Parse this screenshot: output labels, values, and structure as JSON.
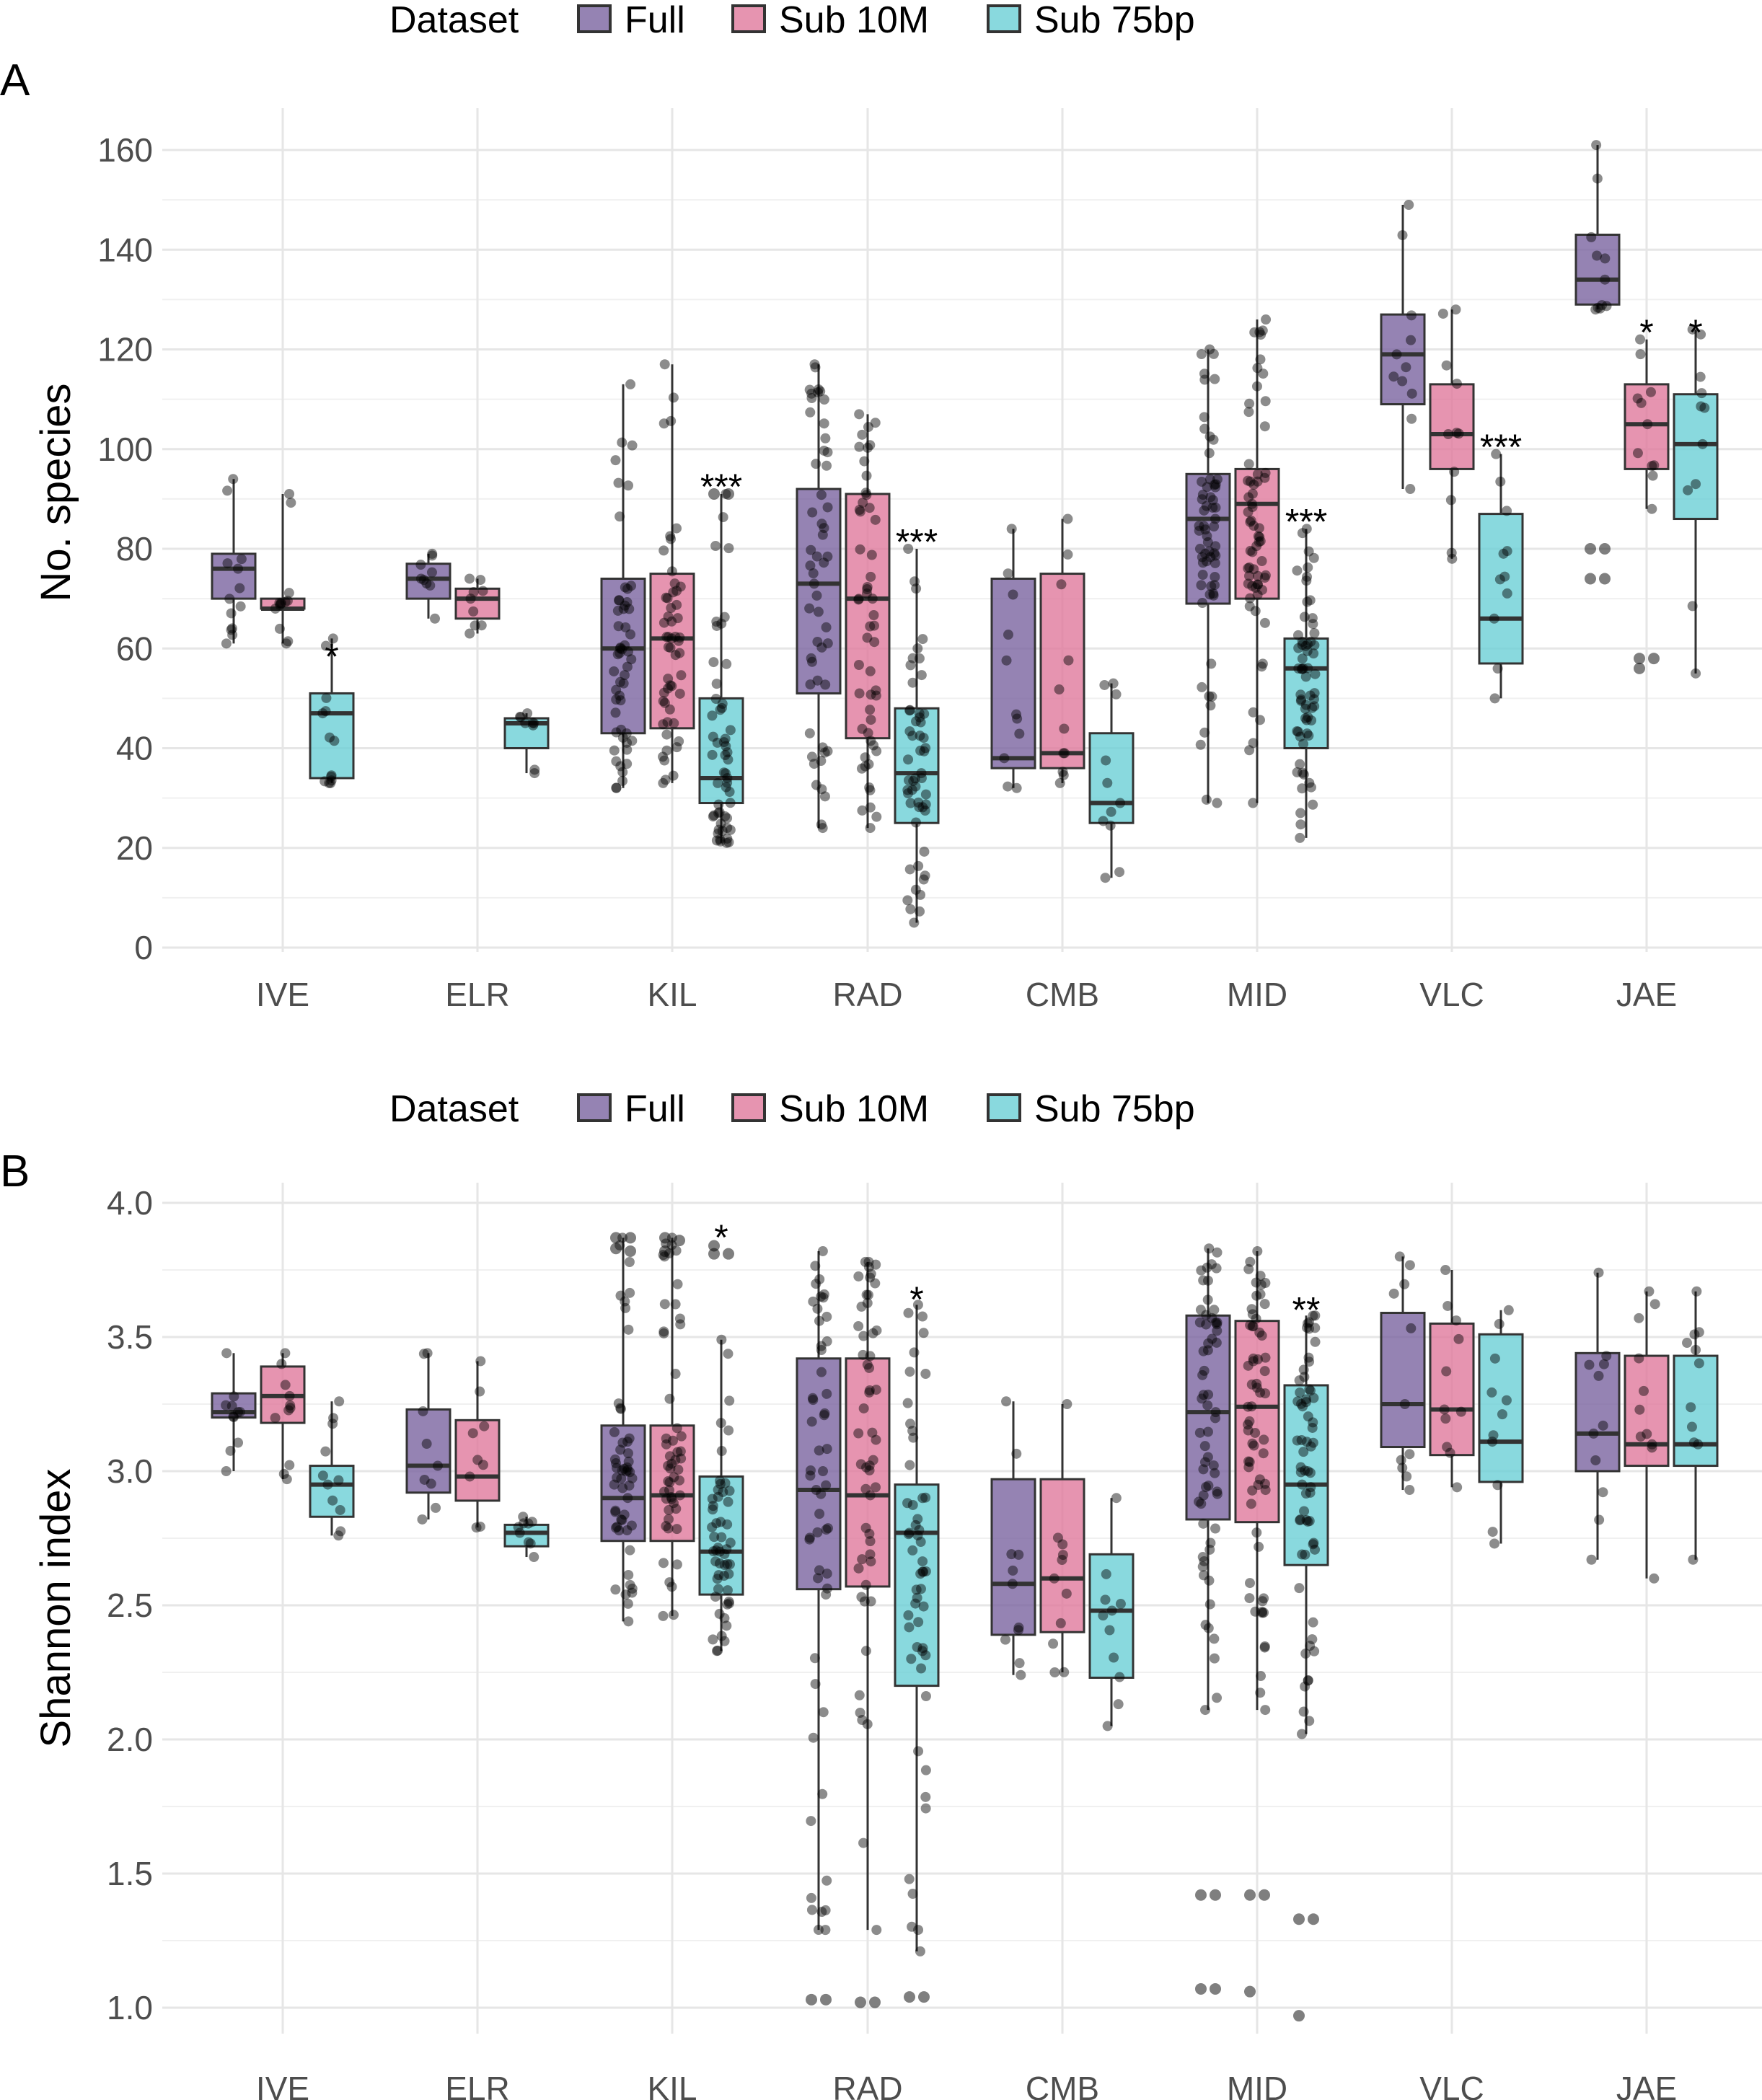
{
  "colors": {
    "Full": "#7b64a0",
    "Sub 10M": "#e0799c",
    "Sub 75bp": "#6cd0d6"
  },
  "chart_data": [
    {
      "type": "box",
      "panel_label": "A",
      "ylabel": "No. species",
      "ylim": [
        0,
        165
      ],
      "yticks": [
        0,
        20,
        40,
        60,
        80,
        100,
        120,
        140,
        160
      ],
      "grid": true,
      "legend": {
        "title": "Dataset",
        "position": "top",
        "entries": [
          "Full",
          "Sub 10M",
          "Sub 75bp"
        ]
      },
      "categories": [
        "IVE",
        "ELR",
        "KIL",
        "RAD",
        "CMB",
        "MID",
        "VLC",
        "JAE"
      ],
      "series": [
        {
          "name": "Full",
          "boxes": [
            {
              "q1": 70,
              "median": 76,
              "q3": 79,
              "lo": 61,
              "hi": 94
            },
            {
              "q1": 70,
              "median": 74,
              "q3": 77,
              "lo": 66,
              "hi": 79
            },
            {
              "q1": 43,
              "median": 60,
              "q3": 74,
              "lo": 32,
              "hi": 113
            },
            {
              "q1": 51,
              "median": 73,
              "q3": 92,
              "lo": 24,
              "hi": 117
            },
            {
              "q1": 36,
              "median": 38,
              "q3": 74,
              "lo": 32,
              "hi": 84
            },
            {
              "q1": 69,
              "median": 86,
              "q3": 95,
              "lo": 29,
              "hi": 120
            },
            {
              "q1": 109,
              "median": 119,
              "q3": 127,
              "lo": 92,
              "hi": 149
            },
            {
              "q1": 129,
              "median": 134,
              "q3": 143,
              "lo": 128,
              "hi": 161
            }
          ]
        },
        {
          "name": "Sub 10M",
          "boxes": [
            {
              "q1": 68,
              "median": 68,
              "q3": 70,
              "lo": 61,
              "hi": 91
            },
            {
              "q1": 66,
              "median": 70,
              "q3": 72,
              "lo": 63,
              "hi": 74
            },
            {
              "q1": 44,
              "median": 62,
              "q3": 75,
              "lo": 33,
              "hi": 117
            },
            {
              "q1": 42,
              "median": 70,
              "q3": 91,
              "lo": 24,
              "hi": 107
            },
            {
              "q1": 36,
              "median": 39,
              "q3": 75,
              "lo": 33,
              "hi": 86
            },
            {
              "q1": 70,
              "median": 89,
              "q3": 96,
              "lo": 29,
              "hi": 126
            },
            {
              "q1": 96,
              "median": 103,
              "q3": 113,
              "lo": 78,
              "hi": 128
            },
            {
              "q1": 96,
              "median": 105,
              "q3": 113,
              "lo": 88,
              "hi": 122
            }
          ]
        },
        {
          "name": "Sub 75bp",
          "boxes": [
            {
              "q1": 34,
              "median": 47,
              "q3": 51,
              "lo": 33,
              "hi": 62
            },
            {
              "q1": 40,
              "median": 45,
              "q3": 46,
              "lo": 35,
              "hi": 47
            },
            {
              "q1": 29,
              "median": 34,
              "q3": 50,
              "lo": 21,
              "hi": 91
            },
            {
              "q1": 25,
              "median": 35,
              "q3": 48,
              "lo": 5,
              "hi": 80
            },
            {
              "q1": 25,
              "median": 29,
              "q3": 43,
              "lo": 14,
              "hi": 53
            },
            {
              "q1": 40,
              "median": 56,
              "q3": 62,
              "lo": 22,
              "hi": 84
            },
            {
              "q1": 57,
              "median": 66,
              "q3": 87,
              "lo": 50,
              "hi": 99
            },
            {
              "q1": 86,
              "median": 101,
              "q3": 111,
              "lo": 55,
              "hi": 124
            }
          ]
        }
      ],
      "outliers": [
        {
          "cat": "JAE",
          "series": "Full",
          "values": [
            80,
            80,
            74,
            74
          ]
        },
        {
          "cat": "JAE",
          "series": "Sub 10M",
          "values": [
            58,
            58,
            56
          ]
        },
        {
          "cat": "JAE",
          "series": "Sub 75bp",
          "values": []
        },
        {
          "cat": "KIL",
          "series": "Sub 75bp",
          "values": [
            91,
            91
          ]
        }
      ],
      "annotations": [
        {
          "cat": "IVE",
          "series": "Sub 75bp",
          "text": "*",
          "y": 60
        },
        {
          "cat": "KIL",
          "series": "Sub 75bp",
          "text": "***",
          "y": 94
        },
        {
          "cat": "RAD",
          "series": "Sub 75bp",
          "text": "***",
          "y": 83
        },
        {
          "cat": "MID",
          "series": "Sub 75bp",
          "text": "***",
          "y": 87
        },
        {
          "cat": "VLC",
          "series": "Sub 75bp",
          "text": "***",
          "y": 102
        },
        {
          "cat": "JAE",
          "series": "Sub 10M",
          "text": "*",
          "y": 125
        },
        {
          "cat": "JAE",
          "series": "Sub 75bp",
          "text": "*",
          "y": 125
        }
      ]
    },
    {
      "type": "box",
      "panel_label": "B",
      "ylabel": "Shannon index",
      "ylim": [
        0.93,
        4.02
      ],
      "yticks": [
        1.0,
        1.5,
        2.0,
        2.5,
        3.0,
        3.5,
        4.0
      ],
      "grid": true,
      "legend": {
        "title": "Dataset",
        "position": "top",
        "entries": [
          "Full",
          "Sub 10M",
          "Sub 75bp"
        ]
      },
      "categories": [
        "IVE",
        "ELR",
        "KIL",
        "RAD",
        "CMB",
        "MID",
        "VLC",
        "JAE"
      ],
      "series": [
        {
          "name": "Full",
          "boxes": [
            {
              "q1": 3.2,
              "median": 3.22,
              "q3": 3.29,
              "lo": 3.0,
              "hi": 3.44
            },
            {
              "q1": 2.92,
              "median": 3.02,
              "q3": 3.23,
              "lo": 2.82,
              "hi": 3.44
            },
            {
              "q1": 2.74,
              "median": 2.9,
              "q3": 3.17,
              "lo": 2.44,
              "hi": 3.87
            },
            {
              "q1": 2.56,
              "median": 2.93,
              "q3": 3.42,
              "lo": 1.29,
              "hi": 3.82
            },
            {
              "q1": 2.39,
              "median": 2.58,
              "q3": 2.97,
              "lo": 2.24,
              "hi": 3.26
            },
            {
              "q1": 2.82,
              "median": 3.22,
              "q3": 3.58,
              "lo": 2.11,
              "hi": 3.83
            },
            {
              "q1": 3.09,
              "median": 3.25,
              "q3": 3.59,
              "lo": 2.93,
              "hi": 3.8
            },
            {
              "q1": 3.0,
              "median": 3.14,
              "q3": 3.44,
              "lo": 2.67,
              "hi": 3.74
            }
          ]
        },
        {
          "name": "Sub 10M",
          "boxes": [
            {
              "q1": 3.18,
              "median": 3.28,
              "q3": 3.39,
              "lo": 2.97,
              "hi": 3.44
            },
            {
              "q1": 2.89,
              "median": 2.98,
              "q3": 3.19,
              "lo": 2.79,
              "hi": 3.41
            },
            {
              "q1": 2.74,
              "median": 2.91,
              "q3": 3.17,
              "lo": 2.46,
              "hi": 3.87
            },
            {
              "q1": 2.57,
              "median": 2.91,
              "q3": 3.42,
              "lo": 1.29,
              "hi": 3.78
            },
            {
              "q1": 2.4,
              "median": 2.6,
              "q3": 2.97,
              "lo": 2.25,
              "hi": 3.25
            },
            {
              "q1": 2.81,
              "median": 3.24,
              "q3": 3.56,
              "lo": 2.11,
              "hi": 3.82
            },
            {
              "q1": 3.06,
              "median": 3.23,
              "q3": 3.55,
              "lo": 2.94,
              "hi": 3.75
            },
            {
              "q1": 3.02,
              "median": 3.1,
              "q3": 3.43,
              "lo": 2.6,
              "hi": 3.67
            }
          ]
        },
        {
          "name": "Sub 75bp",
          "boxes": [
            {
              "q1": 2.83,
              "median": 2.95,
              "q3": 3.02,
              "lo": 2.76,
              "hi": 3.26
            },
            {
              "q1": 2.72,
              "median": 2.77,
              "q3": 2.8,
              "lo": 2.68,
              "hi": 2.83
            },
            {
              "q1": 2.54,
              "median": 2.7,
              "q3": 2.98,
              "lo": 2.33,
              "hi": 3.49
            },
            {
              "q1": 2.2,
              "median": 2.77,
              "q3": 2.95,
              "lo": 1.21,
              "hi": 3.62
            },
            {
              "q1": 2.23,
              "median": 2.48,
              "q3": 2.69,
              "lo": 2.05,
              "hi": 2.9
            },
            {
              "q1": 2.65,
              "median": 2.95,
              "q3": 3.32,
              "lo": 2.02,
              "hi": 3.58
            },
            {
              "q1": 2.96,
              "median": 3.11,
              "q3": 3.51,
              "lo": 2.73,
              "hi": 3.6
            },
            {
              "q1": 3.02,
              "median": 3.1,
              "q3": 3.43,
              "lo": 2.67,
              "hi": 3.67
            }
          ]
        }
      ],
      "outliers": [
        {
          "cat": "KIL",
          "series": "Full",
          "values": [
            3.87,
            3.87,
            3.83,
            3.82
          ]
        },
        {
          "cat": "KIL",
          "series": "Sub 10M",
          "values": [
            3.87,
            3.86,
            3.82
          ]
        },
        {
          "cat": "KIL",
          "series": "Sub 75bp",
          "values": [
            3.84,
            3.81,
            3.81
          ]
        },
        {
          "cat": "RAD",
          "series": "Full",
          "values": [
            1.03,
            1.03
          ]
        },
        {
          "cat": "RAD",
          "series": "Sub 10M",
          "values": [
            1.02,
            1.02
          ]
        },
        {
          "cat": "RAD",
          "series": "Sub 75bp",
          "values": [
            1.04,
            1.04
          ]
        },
        {
          "cat": "MID",
          "series": "Full",
          "values": [
            1.42,
            1.42,
            1.07,
            1.07
          ]
        },
        {
          "cat": "MID",
          "series": "Sub 10M",
          "values": [
            1.42,
            1.42,
            1.06
          ]
        },
        {
          "cat": "MID",
          "series": "Sub 75bp",
          "values": [
            1.33,
            1.33,
            0.97
          ]
        }
      ],
      "annotations": [
        {
          "cat": "KIL",
          "series": "Sub 75bp",
          "text": "*",
          "y": 3.9
        },
        {
          "cat": "RAD",
          "series": "Sub 75bp",
          "text": "*",
          "y": 3.67
        },
        {
          "cat": "MID",
          "series": "Sub 75bp",
          "text": "**",
          "y": 3.63
        }
      ]
    }
  ]
}
